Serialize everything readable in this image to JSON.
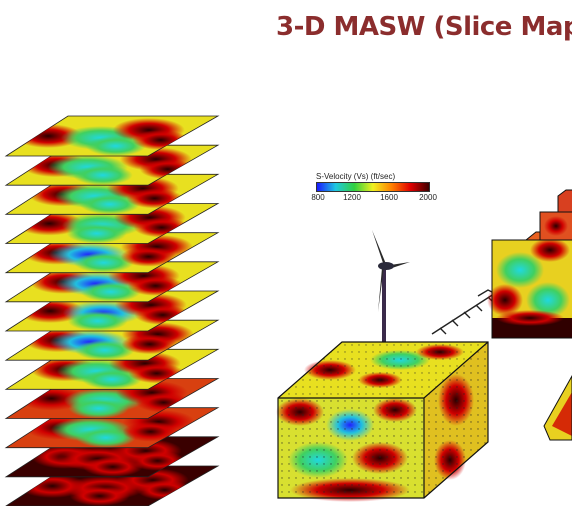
{
  "title": "3-D MASW (Slice Map",
  "title_color": "#8b2d2d",
  "legend": {
    "label": "S-Velocity (Vs) (ft/sec)",
    "ticks": [
      "800",
      "1200",
      "1600",
      "2000"
    ],
    "colors": [
      "#1a1aff",
      "#20c8e0",
      "#30d040",
      "#f0f020",
      "#ff8000",
      "#e00000",
      "#400000"
    ]
  },
  "slice_stack": {
    "slice_count": 13
  },
  "icons": [
    "wind-turbine-icon",
    "survey-array-icon"
  ]
}
